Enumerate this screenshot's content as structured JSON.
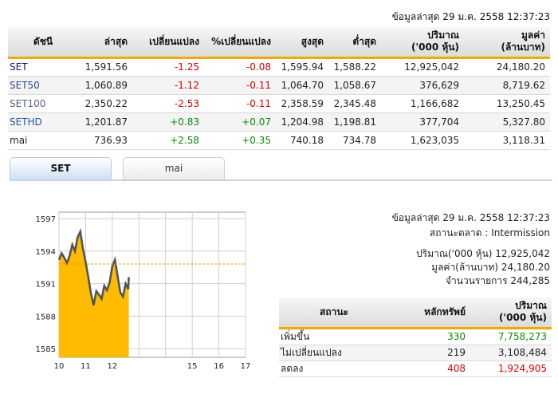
{
  "header": {
    "updated": "ข้อมูลล่าสุด 29 ม.ค. 2558 12:37:23"
  },
  "index_table": {
    "columns": [
      "ดัชนี",
      "ล่าสุด",
      "เปลี่ยนแปลง",
      "%เปลี่ยนแปลง",
      "สูงสุด",
      "ต่ำสุด",
      "ปริมาณ",
      "('000 หุ้น)",
      "มูลค่า",
      "(ล้านบาท)"
    ],
    "rows": [
      {
        "name": "SET",
        "last": "1,591.56",
        "change": "-1.25",
        "pct": "-0.08",
        "high": "1,595.94",
        "low": "1,588.22",
        "volume": "12,925,042",
        "value": "24,180.20"
      },
      {
        "name": "SET50",
        "last": "1,060.89",
        "change": "-1.12",
        "pct": "-0.11",
        "high": "1,064.70",
        "low": "1,058.67",
        "volume": "376,629",
        "value": "8,719.62"
      },
      {
        "name": "SET100",
        "last": "2,350.22",
        "change": "-2.53",
        "pct": "-0.11",
        "high": "2,358.59",
        "low": "2,345.48",
        "volume": "1,166,682",
        "value": "13,250.45"
      },
      {
        "name": "SETHD",
        "last": "1,201.87",
        "change": "+0.83",
        "pct": "+0.07",
        "high": "1,204.98",
        "low": "1,198.81",
        "volume": "377,704",
        "value": "5,327.80"
      },
      {
        "name": "mai",
        "last": "736.93",
        "change": "+2.58",
        "pct": "+0.35",
        "high": "740.18",
        "low": "734.78",
        "volume": "1,623,035",
        "value": "3,118.31"
      }
    ]
  },
  "tabs": [
    {
      "label": "SET",
      "active": true
    },
    {
      "label": "mai",
      "active": false
    }
  ],
  "info": {
    "updated": "ข้อมูลล่าสุด 29 ม.ค. 2558 12:37:23",
    "market_status": "สถานะตลาด : Intermission",
    "volume": "ปริมาณ('000 หุ้น) 12,925,042",
    "value": "มูลค่า(ล้านบาท) 24,180.20",
    "transactions": "จำนวนรายการ 244,285"
  },
  "status_table": {
    "columns": [
      "สถานะ",
      "หลักทรัพย์",
      "ปริมาณ",
      "('000 หุ้น)"
    ],
    "rows": [
      {
        "label": "เพิ่มขึ้น",
        "count": "330",
        "volume": "7,758,273"
      },
      {
        "label": "ไม่เปลี่ยนแปลง",
        "count": "219",
        "volume": "3,108,484"
      },
      {
        "label": "ลดลง",
        "count": "408",
        "volume": "1,924,905"
      }
    ]
  },
  "colors": {
    "up": "#0a8a0a",
    "down": "#d40000",
    "accent": "#f2a900",
    "area": "#ffbb00",
    "line": "#555555",
    "prev_close": "#e0a000"
  },
  "chart_data": {
    "type": "area",
    "title": "",
    "xlabel": "",
    "ylabel": "",
    "x_ticks": [
      "10",
      "11",
      "12",
      "15",
      "16",
      "17"
    ],
    "y_ticks": [
      "1597",
      "1594",
      "1591",
      "1588",
      "1585"
    ],
    "ylim": [
      1584.2,
      1597.6
    ],
    "xlim": [
      10,
      17
    ],
    "prev_close": 1592.81,
    "grid": true,
    "series": [
      {
        "x": [
          10.0,
          10.1,
          10.2,
          10.3,
          10.4,
          10.5,
          10.6,
          10.7,
          10.8,
          10.9,
          11.0,
          11.1,
          11.2,
          11.3,
          11.4,
          11.5,
          11.6,
          11.7,
          11.8,
          11.9,
          12.0,
          12.1,
          12.2,
          12.3,
          12.4,
          12.5,
          12.6,
          12.62
        ],
        "y": [
          1593.2,
          1593.8,
          1593.4,
          1592.9,
          1593.6,
          1594.6,
          1594.0,
          1595.3,
          1595.8,
          1594.2,
          1593.0,
          1591.6,
          1590.1,
          1589.0,
          1590.3,
          1590.0,
          1589.6,
          1590.8,
          1590.4,
          1591.1,
          1592.6,
          1593.2,
          1591.7,
          1590.2,
          1589.8,
          1591.0,
          1590.5,
          1591.6
        ]
      }
    ]
  }
}
